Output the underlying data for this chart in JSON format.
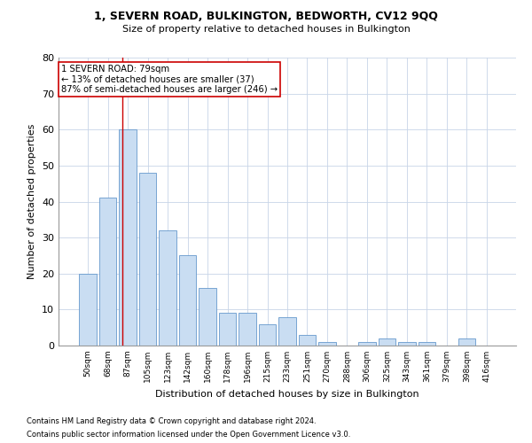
{
  "title1": "1, SEVERN ROAD, BULKINGTON, BEDWORTH, CV12 9QQ",
  "title2": "Size of property relative to detached houses in Bulkington",
  "xlabel": "Distribution of detached houses by size in Bulkington",
  "ylabel": "Number of detached properties",
  "categories": [
    "50sqm",
    "68sqm",
    "87sqm",
    "105sqm",
    "123sqm",
    "142sqm",
    "160sqm",
    "178sqm",
    "196sqm",
    "215sqm",
    "233sqm",
    "251sqm",
    "270sqm",
    "288sqm",
    "306sqm",
    "325sqm",
    "343sqm",
    "361sqm",
    "379sqm",
    "398sqm",
    "416sqm"
  ],
  "values": [
    20,
    41,
    60,
    48,
    32,
    25,
    16,
    9,
    9,
    6,
    8,
    3,
    1,
    0,
    1,
    2,
    1,
    1,
    0,
    2,
    0
  ],
  "bar_color": "#c9ddf2",
  "bar_edge_color": "#6699cc",
  "bar_width": 0.85,
  "ylim": [
    0,
    80
  ],
  "yticks": [
    0,
    10,
    20,
    30,
    40,
    50,
    60,
    70,
    80
  ],
  "annotation_text": "1 SEVERN ROAD: 79sqm\n← 13% of detached houses are smaller (37)\n87% of semi-detached houses are larger (246) →",
  "footnote1": "Contains HM Land Registry data © Crown copyright and database right 2024.",
  "footnote2": "Contains public sector information licensed under the Open Government Licence v3.0.",
  "background_color": "#ffffff",
  "grid_color": "#c8d4e8",
  "annotation_box_color": "#ffffff",
  "annotation_box_edge": "#cc0000",
  "red_line_color": "#cc0000",
  "red_line_x": 1.72
}
